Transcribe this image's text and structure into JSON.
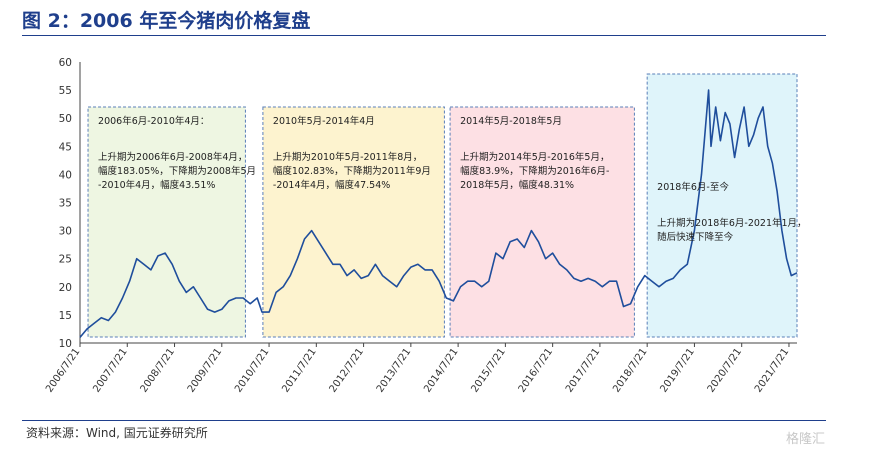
{
  "header": {
    "title": "图 2：2006 年至今猪肉价格复盘"
  },
  "footer": {
    "source": "资料来源：Wind, 国元证券研究所",
    "watermark": "格隆汇"
  },
  "chart_data": {
    "type": "line",
    "title": "",
    "xlabel": "",
    "ylabel": "",
    "ylim": [
      10,
      60
    ],
    "yticks": [
      10,
      15,
      20,
      25,
      30,
      35,
      40,
      45,
      50,
      55,
      60
    ],
    "xlim": [
      2006.55,
      2021.72
    ],
    "xticks": [
      "2006/7/21",
      "2007/7/21",
      "2008/7/21",
      "2009/7/21",
      "2010/7/21",
      "2011/7/21",
      "2012/7/21",
      "2013/7/21",
      "2014/7/21",
      "2015/7/21",
      "2016/7/21",
      "2017/7/21",
      "2018/7/21",
      "2019/7/21",
      "2020/7/21",
      "2021/7/21"
    ],
    "grid": false,
    "line_color": "#1f4e9c",
    "series": [
      {
        "x": [
          2006.55,
          2006.7,
          2006.85,
          2007.0,
          2007.15,
          2007.3,
          2007.45,
          2007.6,
          2007.75,
          2007.9,
          2008.05,
          2008.2,
          2008.35,
          2008.5,
          2008.65,
          2008.8,
          2008.95,
          2009.1,
          2009.25,
          2009.4,
          2009.55,
          2009.7,
          2009.85,
          2010.0,
          2010.15,
          2010.3,
          2010.4,
          2010.55,
          2010.7,
          2010.85,
          2011.0,
          2011.15,
          2011.3,
          2011.45,
          2011.6,
          2011.75,
          2011.9,
          2012.05,
          2012.2,
          2012.35,
          2012.5,
          2012.65,
          2012.8,
          2012.95,
          2013.1,
          2013.25,
          2013.4,
          2013.55,
          2013.7,
          2013.85,
          2014.0,
          2014.15,
          2014.3,
          2014.45,
          2014.6,
          2014.75,
          2014.9,
          2015.05,
          2015.2,
          2015.35,
          2015.5,
          2015.65,
          2015.8,
          2015.95,
          2016.1,
          2016.25,
          2016.4,
          2016.55,
          2016.7,
          2016.85,
          2017.0,
          2017.15,
          2017.3,
          2017.45,
          2017.6,
          2017.75,
          2017.9,
          2018.05,
          2018.2,
          2018.35,
          2018.5,
          2018.65,
          2018.8,
          2018.95,
          2019.1,
          2019.25,
          2019.4,
          2019.55,
          2019.7,
          2019.85,
          2019.9,
          2020.0,
          2020.1,
          2020.2,
          2020.3,
          2020.4,
          2020.5,
          2020.6,
          2020.7,
          2020.8,
          2020.9,
          2021.0,
          2021.1,
          2021.2,
          2021.3,
          2021.4,
          2021.5,
          2021.6,
          2021.72
        ],
        "y": [
          11,
          12.5,
          13.5,
          14.5,
          14,
          15.5,
          18,
          21,
          25,
          24,
          23,
          25.5,
          26,
          24,
          21,
          19,
          20,
          18,
          16,
          15.5,
          16,
          17.5,
          18,
          18,
          17,
          18,
          15.5,
          15.5,
          19,
          20,
          22,
          25,
          28.5,
          30,
          28,
          26,
          24,
          24,
          22,
          23,
          21.5,
          22,
          24,
          22,
          21,
          20,
          22,
          23.5,
          24,
          23,
          23,
          21,
          18,
          17.5,
          20,
          21,
          21,
          20,
          21,
          26,
          25,
          28,
          28.5,
          27,
          30,
          28,
          25,
          26,
          24,
          23,
          21.5,
          21,
          21.5,
          21,
          20,
          21,
          21,
          16.5,
          17,
          20,
          22,
          21,
          20,
          21,
          21.5,
          23,
          24,
          30,
          40,
          55,
          45,
          52,
          46,
          51,
          49,
          43,
          48,
          52,
          45,
          47,
          50,
          52,
          45,
          42,
          37,
          30,
          25,
          22,
          22.5
        ]
      }
    ],
    "annotations": [
      {
        "title": "2006年6月-2010年4月：",
        "lines": [
          "上升期为2006年6月-2008年4月，",
          "幅度183.05%，下降期为2008年5月",
          "-2010年4月，幅度43.51%"
        ],
        "fill": "#eef6e2",
        "x0": 2006.72,
        "x1": 2010.05
      },
      {
        "title": "2010年5月-2014年4月",
        "lines": [
          "上升期为2010年5月-2011年8月，",
          "幅度102.83%，下降期为2011年9月",
          "-2014年4月，幅度47.54%"
        ],
        "fill": "#fdf3cf",
        "x0": 2010.42,
        "x1": 2014.26
      },
      {
        "title": "2014年5月-2018年5月",
        "lines": [
          "上升期为2014年5月-2016年5月，",
          "幅度83.9%，下降期为2016年6月-",
          "2018年5月，幅度48.31%"
        ],
        "fill": "#fde0e4",
        "x0": 2014.38,
        "x1": 2018.28
      },
      {
        "title": "2018年6月-至今",
        "lines": [
          "",
          "上升期为2018年6月-2021年1月，",
          "随后快速下降至今"
        ],
        "fill": "#dff4fa",
        "x0": 2018.55,
        "x1": 2021.72
      }
    ]
  }
}
